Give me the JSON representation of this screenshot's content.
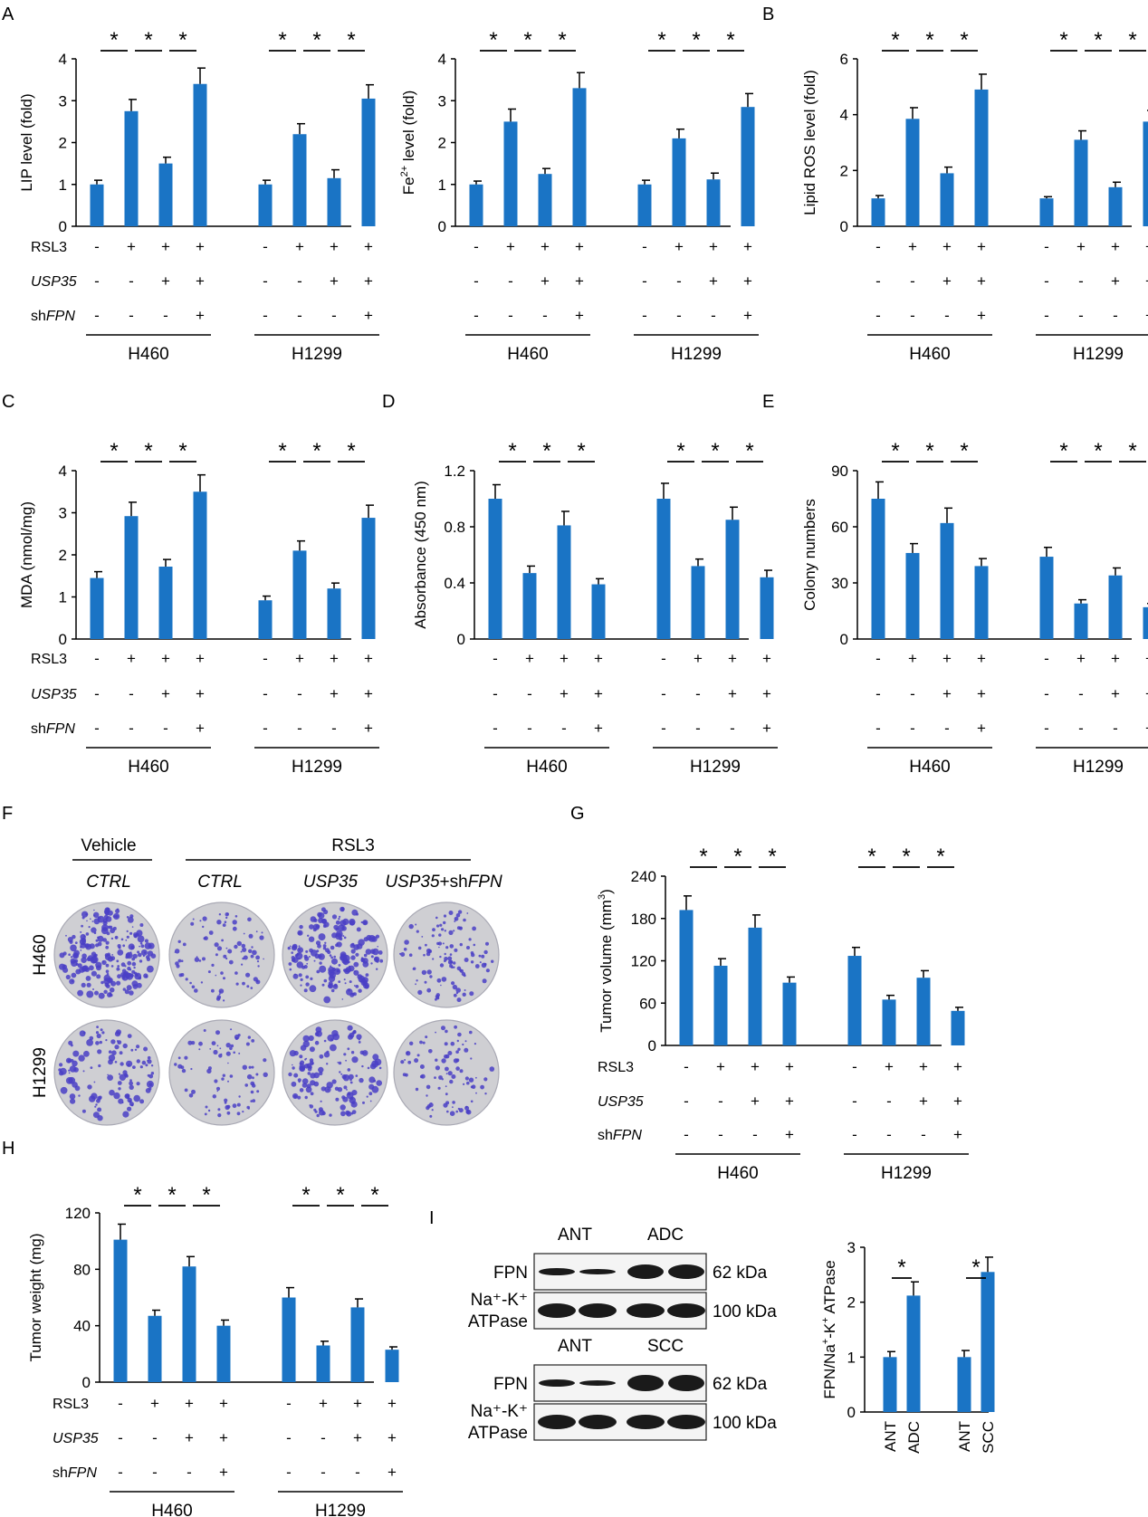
{
  "colors": {
    "bar": "#1a74c5",
    "axis": "#000000",
    "plate_bg": "#cfcfd3",
    "stain": "#4a3fc6",
    "band": "#1a1a1a"
  },
  "row_labels": [
    "RSL3",
    "USP35",
    "shFPN"
  ],
  "rows": [
    [
      "-",
      "+",
      "+",
      "+",
      "-",
      "+",
      "+",
      "+"
    ],
    [
      "-",
      "-",
      "+",
      "+",
      "-",
      "-",
      "+",
      "+"
    ],
    [
      "-",
      "-",
      "-",
      "+",
      "-",
      "-",
      "-",
      "+"
    ]
  ],
  "groups": [
    "H460",
    "H1299"
  ],
  "star": "*",
  "panels": {
    "A": "A",
    "B": "B",
    "C": "C",
    "D": "D",
    "E": "E",
    "F": "F",
    "G": "G",
    "H": "H",
    "I": "I"
  },
  "plates": {
    "header_vehicle": "Vehicle",
    "header_rsl3": "RSL3",
    "columns": [
      "CTRL",
      "CTRL",
      "USP35",
      "USP35+shFPN"
    ],
    "rows": [
      "H460",
      "H1299"
    ]
  },
  "blot": {
    "blocks": [
      {
        "left_label": "ANT",
        "right_label": "ADC"
      },
      {
        "left_label": "ANT",
        "right_label": "SCC"
      }
    ],
    "fpn_label": "FPN",
    "atpase_label_line1": "Na⁺-K⁺",
    "atpase_label_line2": "ATPase",
    "fpn_size": "62 kDa",
    "atpase_size": "100 kDa"
  },
  "chart_data": [
    {
      "id": "A1",
      "type": "bar",
      "ylabel": "LIP level (fold)",
      "ylim": [
        0,
        4
      ],
      "yticks": [
        0,
        1,
        2,
        3,
        4
      ],
      "categories": [
        "H460-1",
        "H460-2",
        "H460-3",
        "H460-4",
        "H1299-1",
        "H1299-2",
        "H1299-3",
        "H1299-4"
      ],
      "values": [
        1.0,
        2.75,
        1.5,
        3.4,
        1.0,
        2.2,
        1.15,
        3.05
      ],
      "errors": [
        0.1,
        0.28,
        0.15,
        0.38,
        0.1,
        0.25,
        0.2,
        0.33
      ]
    },
    {
      "id": "A2",
      "type": "bar",
      "ylabel": "Fe2+ level (fold)",
      "ylim": [
        0,
        4
      ],
      "yticks": [
        0,
        1,
        2,
        3,
        4
      ],
      "categories": [
        "H460-1",
        "H460-2",
        "H460-3",
        "H460-4",
        "H1299-1",
        "H1299-2",
        "H1299-3",
        "H1299-4"
      ],
      "values": [
        1.0,
        2.5,
        1.25,
        3.3,
        1.0,
        2.1,
        1.12,
        2.85
      ],
      "errors": [
        0.08,
        0.3,
        0.13,
        0.37,
        0.1,
        0.22,
        0.15,
        0.32
      ]
    },
    {
      "id": "B",
      "type": "bar",
      "ylabel": "Lipid ROS level (fold)",
      "ylim": [
        0,
        6
      ],
      "yticks": [
        0,
        2,
        4,
        6
      ],
      "categories": [
        "H460-1",
        "H460-2",
        "H460-3",
        "H460-4",
        "H1299-1",
        "H1299-2",
        "H1299-3",
        "H1299-4"
      ],
      "values": [
        1.0,
        3.85,
        1.9,
        4.9,
        1.0,
        3.1,
        1.4,
        3.75
      ],
      "errors": [
        0.1,
        0.4,
        0.22,
        0.55,
        0.06,
        0.32,
        0.18,
        0.4
      ]
    },
    {
      "id": "C",
      "type": "bar",
      "ylabel": "MDA (nmol/mg)",
      "ylim": [
        0,
        4
      ],
      "yticks": [
        0,
        1,
        2,
        3,
        4
      ],
      "categories": [
        "H460-1",
        "H460-2",
        "H460-3",
        "H460-4",
        "H1299-1",
        "H1299-2",
        "H1299-3",
        "H1299-4"
      ],
      "values": [
        1.45,
        2.92,
        1.72,
        3.5,
        0.92,
        2.1,
        1.2,
        2.88
      ],
      "errors": [
        0.15,
        0.33,
        0.17,
        0.4,
        0.1,
        0.23,
        0.13,
        0.3
      ]
    },
    {
      "id": "D",
      "type": "bar",
      "ylabel": "Absorbance (450 nm)",
      "ylim": [
        0,
        1.2
      ],
      "yticks": [
        0,
        0.4,
        0.8,
        1.2
      ],
      "categories": [
        "H460-1",
        "H460-2",
        "H460-3",
        "H460-4",
        "H1299-1",
        "H1299-2",
        "H1299-3",
        "H1299-4"
      ],
      "values": [
        1.0,
        0.47,
        0.81,
        0.39,
        1.0,
        0.52,
        0.85,
        0.44
      ],
      "errors": [
        0.1,
        0.05,
        0.1,
        0.04,
        0.11,
        0.05,
        0.09,
        0.05
      ]
    },
    {
      "id": "E",
      "type": "bar",
      "ylabel": "Colony numbers",
      "ylim": [
        0,
        90
      ],
      "yticks": [
        0,
        30,
        60,
        90
      ],
      "categories": [
        "H460-1",
        "H460-2",
        "H460-3",
        "H460-4",
        "H1299-1",
        "H1299-2",
        "H1299-3",
        "H1299-4"
      ],
      "values": [
        75,
        46,
        62,
        39,
        44,
        19,
        34,
        17
      ],
      "errors": [
        9,
        5,
        8,
        4,
        5,
        2,
        4,
        2
      ]
    },
    {
      "id": "G",
      "type": "bar",
      "ylabel": "Tumor volume (mm3)",
      "ylim": [
        0,
        240
      ],
      "yticks": [
        0,
        60,
        120,
        180,
        240
      ],
      "categories": [
        "H460-1",
        "H460-2",
        "H460-3",
        "H460-4",
        "H1299-1",
        "H1299-2",
        "H1299-3",
        "H1299-4"
      ],
      "values": [
        192,
        113,
        167,
        89,
        127,
        65,
        96,
        49
      ],
      "errors": [
        20,
        10,
        18,
        8,
        12,
        6,
        10,
        5
      ]
    },
    {
      "id": "H",
      "type": "bar",
      "ylabel": "Tumor weight (mg)",
      "ylim": [
        0,
        120
      ],
      "yticks": [
        0,
        40,
        80,
        120
      ],
      "categories": [
        "H460-1",
        "H460-2",
        "H460-3",
        "H460-4",
        "H1299-1",
        "H1299-2",
        "H1299-3",
        "H1299-4"
      ],
      "values": [
        101,
        47,
        82,
        40,
        60,
        26,
        53,
        23
      ],
      "errors": [
        11,
        4,
        7,
        4,
        7,
        3,
        6,
        2
      ]
    },
    {
      "id": "I",
      "type": "bar",
      "ylabel": "FPN/Na+-K+ ATPase",
      "ylim": [
        0,
        3
      ],
      "yticks": [
        0,
        1,
        2,
        3
      ],
      "categories": [
        "ANT",
        "ADC",
        "ANT",
        "SCC"
      ],
      "values": [
        1.0,
        2.12,
        1.0,
        2.55
      ],
      "errors": [
        0.1,
        0.25,
        0.12,
        0.27
      ]
    }
  ]
}
